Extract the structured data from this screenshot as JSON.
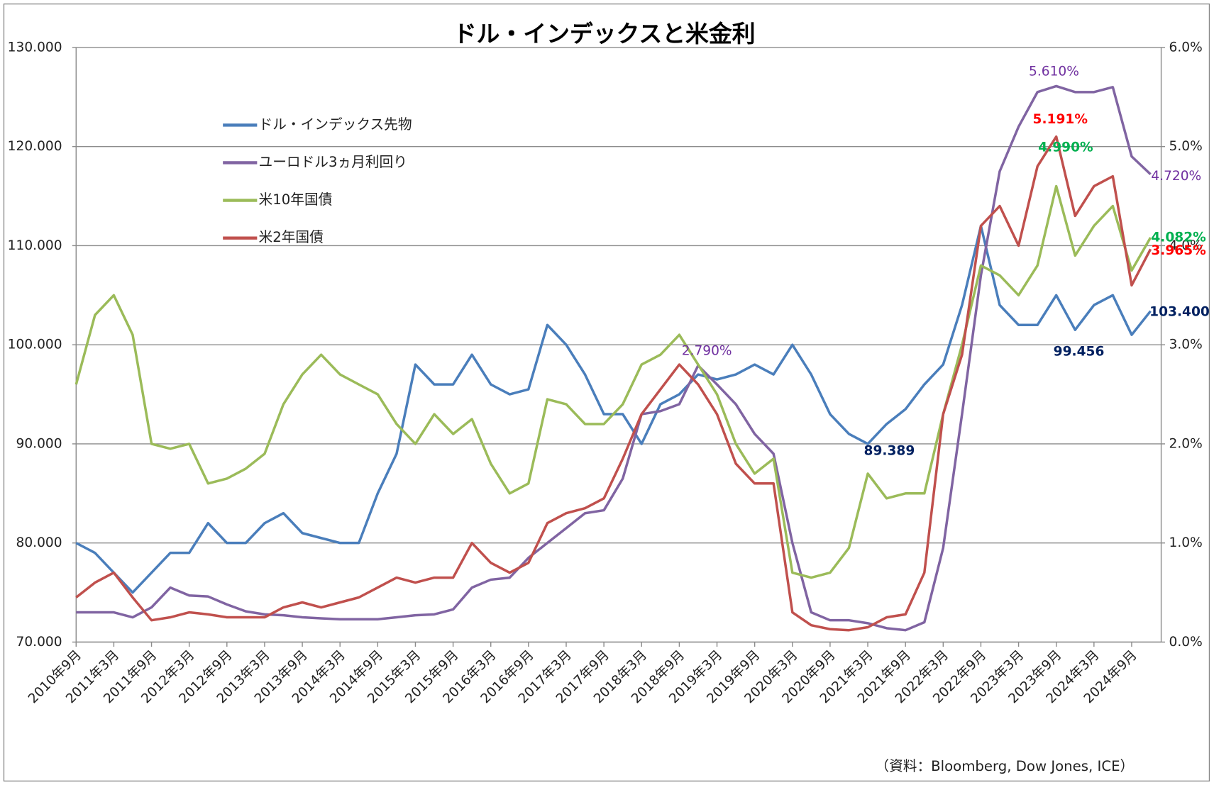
{
  "chart_data": {
    "type": "line",
    "title": "ドル・インデックスと米金利",
    "source": "（資料：Bloomberg, Dow Jones, ICE）",
    "categories": [
      "2010年9月",
      null,
      "2011年3月",
      null,
      "2011年9月",
      null,
      "2012年3月",
      null,
      "2012年9月",
      null,
      "2013年3月",
      null,
      "2013年9月",
      null,
      "2014年3月",
      null,
      "2014年9月",
      null,
      "2015年3月",
      null,
      "2015年9月",
      null,
      "2016年3月",
      null,
      "2016年9月",
      null,
      "2017年3月",
      null,
      "2017年9月",
      null,
      "2018年3月",
      null,
      "2018年9月",
      null,
      "2019年3月",
      null,
      "2019年9月",
      null,
      "2020年3月",
      null,
      "2020年9月",
      null,
      "2021年3月",
      null,
      "2021年9月",
      null,
      "2022年3月",
      null,
      "2022年9月",
      null,
      "2023年3月",
      null,
      "2023年9月",
      null,
      "2024年3月",
      null,
      "2024年9月",
      null
    ],
    "ylim": [
      70,
      130
    ],
    "yticks": [
      {
        "value": 70,
        "label": "70.000"
      },
      {
        "value": 80,
        "label": "80.000"
      },
      {
        "value": 90,
        "label": "90.000"
      },
      {
        "value": 100,
        "label": "100.000"
      },
      {
        "value": 110,
        "label": "110.000"
      },
      {
        "value": 120,
        "label": "120.000"
      },
      {
        "value": 130,
        "label": "130.000"
      }
    ],
    "y2lim": [
      0,
      6
    ],
    "y2ticks": [
      {
        "value": 0,
        "label": "0.0%"
      },
      {
        "value": 1,
        "label": "1.0%"
      },
      {
        "value": 2,
        "label": "2.0%"
      },
      {
        "value": 3,
        "label": "3.0%"
      },
      {
        "value": 4,
        "label": "4.0%"
      },
      {
        "value": 5,
        "label": "5.0%"
      },
      {
        "value": 6,
        "label": "6.0%"
      }
    ],
    "grid": true,
    "legend": "upper left",
    "series": [
      {
        "name": "ドル・インデックス先物",
        "color": "#4a7ebb",
        "values": [
          80,
          79,
          77,
          75,
          77,
          79,
          79,
          82,
          80,
          80,
          82,
          83,
          81,
          80.5,
          80,
          80,
          85,
          89,
          98,
          96,
          96,
          99,
          96,
          95,
          95.5,
          102,
          100,
          97,
          93,
          93,
          90,
          94,
          95,
          97,
          96.5,
          97,
          98,
          97,
          100,
          97,
          93,
          91,
          90,
          92,
          93.5,
          96,
          98,
          104,
          112,
          104,
          102,
          102,
          105,
          101.5,
          104,
          105,
          101,
          103.4
        ]
      },
      {
        "name": "ユーロドル3ヵ月利回り",
        "color": "#8064a2",
        "axis": "y2",
        "values": [
          0.3,
          0.3,
          0.3,
          0.25,
          0.35,
          0.55,
          0.47,
          0.46,
          0.38,
          0.31,
          0.28,
          0.27,
          0.25,
          0.24,
          0.23,
          0.23,
          0.23,
          0.25,
          0.27,
          0.28,
          0.33,
          0.55,
          0.63,
          0.65,
          0.85,
          1.0,
          1.15,
          1.3,
          1.33,
          1.65,
          2.3,
          2.33,
          2.4,
          2.79,
          2.6,
          2.4,
          2.1,
          1.9,
          1.0,
          0.3,
          0.22,
          0.22,
          0.19,
          0.14,
          0.12,
          0.2,
          0.95,
          2.3,
          3.7,
          4.75,
          5.2,
          5.55,
          5.61,
          5.55,
          5.55,
          5.6,
          4.9,
          4.72
        ]
      },
      {
        "name": "米10年国債",
        "color": "#9bbb59",
        "axis": "y2",
        "values": [
          2.6,
          3.3,
          3.5,
          3.1,
          2.0,
          1.95,
          2.0,
          1.6,
          1.65,
          1.75,
          1.9,
          2.4,
          2.7,
          2.9,
          2.7,
          2.6,
          2.5,
          2.2,
          2.0,
          2.3,
          2.1,
          2.25,
          1.8,
          1.5,
          1.6,
          2.45,
          2.4,
          2.2,
          2.2,
          2.4,
          2.8,
          2.9,
          3.1,
          2.8,
          2.5,
          2.0,
          1.7,
          1.85,
          0.7,
          0.65,
          0.7,
          0.95,
          1.7,
          1.45,
          1.5,
          1.5,
          2.3,
          3.0,
          3.8,
          3.7,
          3.5,
          3.8,
          4.6,
          3.9,
          4.2,
          4.4,
          3.75,
          4.082
        ]
      },
      {
        "name": "米2年国債",
        "color": "#c0504d",
        "axis": "y2",
        "values": [
          0.45,
          0.6,
          0.7,
          0.45,
          0.22,
          0.25,
          0.3,
          0.28,
          0.25,
          0.25,
          0.25,
          0.35,
          0.4,
          0.35,
          0.4,
          0.45,
          0.55,
          0.65,
          0.6,
          0.65,
          0.65,
          1.0,
          0.8,
          0.7,
          0.8,
          1.2,
          1.3,
          1.35,
          1.45,
          1.85,
          2.3,
          2.55,
          2.8,
          2.6,
          2.3,
          1.8,
          1.6,
          1.6,
          0.3,
          0.17,
          0.13,
          0.12,
          0.15,
          0.25,
          0.28,
          0.7,
          2.3,
          2.9,
          4.2,
          4.4,
          4.0,
          4.8,
          5.1,
          4.3,
          4.6,
          4.7,
          3.6,
          3.965
        ]
      }
    ],
    "annotations": [
      {
        "text": "5.610%",
        "color": "#7030a0"
      },
      {
        "text": "5.191%",
        "color": "#ff0000"
      },
      {
        "text": "4.990%",
        "color": "#00b050"
      },
      {
        "text": "4.720%",
        "color": "#7030a0"
      },
      {
        "text": "4.082%",
        "color": "#00b050"
      },
      {
        "text": "3.965%",
        "color": "#ff0000"
      },
      {
        "text": "103.400",
        "color": "#002060"
      },
      {
        "text": "99.456",
        "color": "#002060"
      },
      {
        "text": "89.389",
        "color": "#002060"
      },
      {
        "text": "2.790%",
        "color": "#7030a0"
      }
    ]
  }
}
